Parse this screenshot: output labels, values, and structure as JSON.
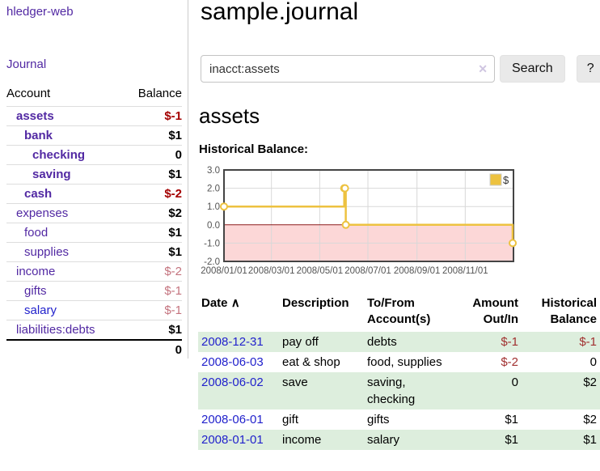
{
  "app": {
    "brand": "hledger-web",
    "nav_journal": "Journal"
  },
  "sidebar": {
    "header": {
      "account": "Account",
      "balance": "Balance"
    },
    "accounts": [
      {
        "name": "assets",
        "balance": "$-1",
        "indent": 1,
        "bold": true,
        "neg": "strong"
      },
      {
        "name": "bank",
        "balance": "$1",
        "indent": 2,
        "bold": true,
        "neg": "none"
      },
      {
        "name": "checking",
        "balance": "0",
        "indent": 3,
        "bold": true,
        "neg": "none"
      },
      {
        "name": "saving",
        "balance": "$1",
        "indent": 3,
        "bold": true,
        "neg": "none"
      },
      {
        "name": "cash",
        "balance": "$-2",
        "indent": 2,
        "bold": true,
        "neg": "strong"
      },
      {
        "name": "expenses",
        "balance": "$2",
        "indent": 1,
        "bold": false,
        "neg": "none"
      },
      {
        "name": "food",
        "balance": "$1",
        "indent": 2,
        "bold": false,
        "neg": "none"
      },
      {
        "name": "supplies",
        "balance": "$1",
        "indent": 2,
        "bold": false,
        "neg": "none"
      },
      {
        "name": "income",
        "balance": "$-2",
        "indent": 1,
        "bold": false,
        "neg": "soft"
      },
      {
        "name": "gifts",
        "balance": "$-1",
        "indent": 2,
        "bold": false,
        "neg": "soft"
      },
      {
        "name": "salary",
        "balance": "$-1",
        "indent": 2,
        "bold": false,
        "neg": "soft",
        "link": "blue"
      },
      {
        "name": "liabilities:debts",
        "balance": "$1",
        "indent": 1,
        "bold": false,
        "neg": "none"
      }
    ],
    "total": "0"
  },
  "header": {
    "title": "sample.journal"
  },
  "search": {
    "value": "inacct:assets",
    "clear_icon": "✕",
    "button": "Search",
    "help": "?"
  },
  "account_page": {
    "title": "assets",
    "chart_label": "Historical Balance:"
  },
  "chart_data": {
    "type": "line",
    "title": "Historical Balance:",
    "steps": true,
    "xlim": [
      "2008-01-01",
      "2009-01-01"
    ],
    "ylim": [
      -2,
      3
    ],
    "y_ticks": [
      3.0,
      2.0,
      1.0,
      0.0,
      -1.0,
      -2.0
    ],
    "x_ticks": [
      {
        "date": "2008-01-01",
        "label": "2008/01/01"
      },
      {
        "date": "2008-03-01",
        "label": "2008/03/01"
      },
      {
        "date": "2008-05-01",
        "label": "2008/05/01"
      },
      {
        "date": "2008-07-01",
        "label": "2008/07/01"
      },
      {
        "date": "2008-09-01",
        "label": "2008/09/01"
      },
      {
        "date": "2008-11-01",
        "label": "2008/11/01"
      }
    ],
    "series": [
      {
        "name": "$",
        "color": "#edc240",
        "points": [
          [
            "2008-01-01",
            1
          ],
          [
            "2008-06-01",
            2
          ],
          [
            "2008-06-02",
            2
          ],
          [
            "2008-06-03",
            0
          ],
          [
            "2008-12-31",
            -1
          ]
        ]
      }
    ],
    "legend_position": "top-right",
    "grid_color": "#d8d8d8",
    "border_color": "#444444",
    "zero_line_color": "#8b1a1a",
    "negative_region_color": "#fcd7d7",
    "tick_label_color": "#545454"
  },
  "register": {
    "columns": [
      "Date",
      "Description",
      "To/From Account(s)",
      "Amount Out/In",
      "Historical Balance"
    ],
    "sort_icon": "∧",
    "rows": [
      {
        "date": "2008-12-31",
        "description": "pay off",
        "accounts": "debts",
        "amount": "$-1",
        "balance": "$-1"
      },
      {
        "date": "2008-06-03",
        "description": "eat & shop",
        "accounts": "food, supplies",
        "amount": "$-2",
        "balance": "0"
      },
      {
        "date": "2008-06-02",
        "description": "save",
        "accounts": "saving, checking",
        "amount": "0",
        "balance": "$2"
      },
      {
        "date": "2008-06-01",
        "description": "gift",
        "accounts": "gifts",
        "amount": "$1",
        "balance": "$2"
      },
      {
        "date": "2008-01-01",
        "description": "income",
        "accounts": "salary",
        "amount": "$1",
        "balance": "$1"
      }
    ]
  }
}
